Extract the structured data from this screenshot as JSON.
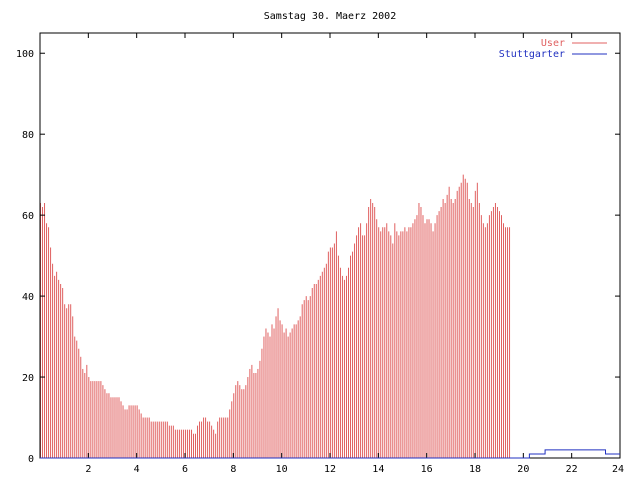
{
  "chart_data": {
    "type": "bar",
    "title": "Samstag 30. Maerz 2002",
    "xlabel": "",
    "ylabel": "",
    "xlim": [
      0,
      24
    ],
    "ylim": [
      0,
      105
    ],
    "x_ticks": [
      2,
      4,
      6,
      8,
      10,
      12,
      14,
      16,
      18,
      20,
      22,
      24
    ],
    "y_ticks": [
      0,
      20,
      40,
      60,
      80,
      100
    ],
    "grid": false,
    "legend_position": "top-right",
    "colors": {
      "user": "#e06060",
      "stuttgarter": "#2030c0"
    },
    "x_step_hours": 0.0833,
    "series": [
      {
        "name": "User",
        "style": "impulses",
        "values": [
          63,
          62,
          63,
          58,
          57,
          52,
          48,
          45,
          46,
          44,
          43,
          42,
          38,
          37,
          38,
          38,
          35,
          30,
          29,
          27,
          25,
          22,
          21,
          23,
          20,
          19,
          19,
          19,
          19,
          19,
          19,
          18,
          17,
          16,
          16,
          15,
          15,
          15,
          15,
          15,
          14,
          13,
          12,
          12,
          13,
          13,
          13,
          13,
          13,
          12,
          11,
          10,
          10,
          10,
          10,
          9,
          9,
          9,
          9,
          9,
          9,
          9,
          9,
          9,
          8,
          8,
          8,
          7,
          7,
          7,
          7,
          7,
          7,
          7,
          7,
          7,
          6,
          6,
          8,
          9,
          9,
          10,
          10,
          9,
          9,
          8,
          7,
          6,
          9,
          10,
          10,
          10,
          10,
          10,
          12,
          14,
          16,
          18,
          19,
          18,
          17,
          17,
          18,
          20,
          22,
          23,
          21,
          21,
          22,
          24,
          27,
          30,
          32,
          31,
          30,
          33,
          32,
          35,
          37,
          34,
          33,
          31,
          32,
          30,
          31,
          32,
          33,
          33,
          34,
          35,
          38,
          39,
          40,
          39,
          40,
          42,
          43,
          43,
          44,
          45,
          46,
          47,
          48,
          51,
          52,
          52,
          53,
          56,
          50,
          47,
          45,
          44,
          45,
          47,
          50,
          51,
          53,
          55,
          57,
          58,
          55,
          55,
          58,
          62,
          64,
          63,
          62,
          59,
          57,
          56,
          57,
          57,
          58,
          56,
          55,
          53,
          58,
          56,
          55,
          56,
          56,
          57,
          56,
          57,
          57,
          58,
          59,
          60,
          63,
          62,
          60,
          58,
          59,
          59,
          58,
          56,
          58,
          60,
          61,
          62,
          64,
          63,
          65,
          67,
          64,
          63,
          64,
          66,
          67,
          68,
          70,
          69,
          68,
          64,
          63,
          62,
          66,
          68,
          63,
          60,
          58,
          57,
          58,
          60,
          61,
          62,
          63,
          62,
          61,
          60,
          58,
          57,
          57,
          57
        ]
      },
      {
        "name": "Stuttgarter",
        "style": "steps",
        "points": [
          [
            0,
            0
          ],
          [
            20.25,
            0
          ],
          [
            20.25,
            1
          ],
          [
            20.9,
            1
          ],
          [
            20.9,
            2
          ],
          [
            23.4,
            2
          ],
          [
            23.4,
            1
          ],
          [
            24,
            1
          ]
        ]
      }
    ]
  }
}
